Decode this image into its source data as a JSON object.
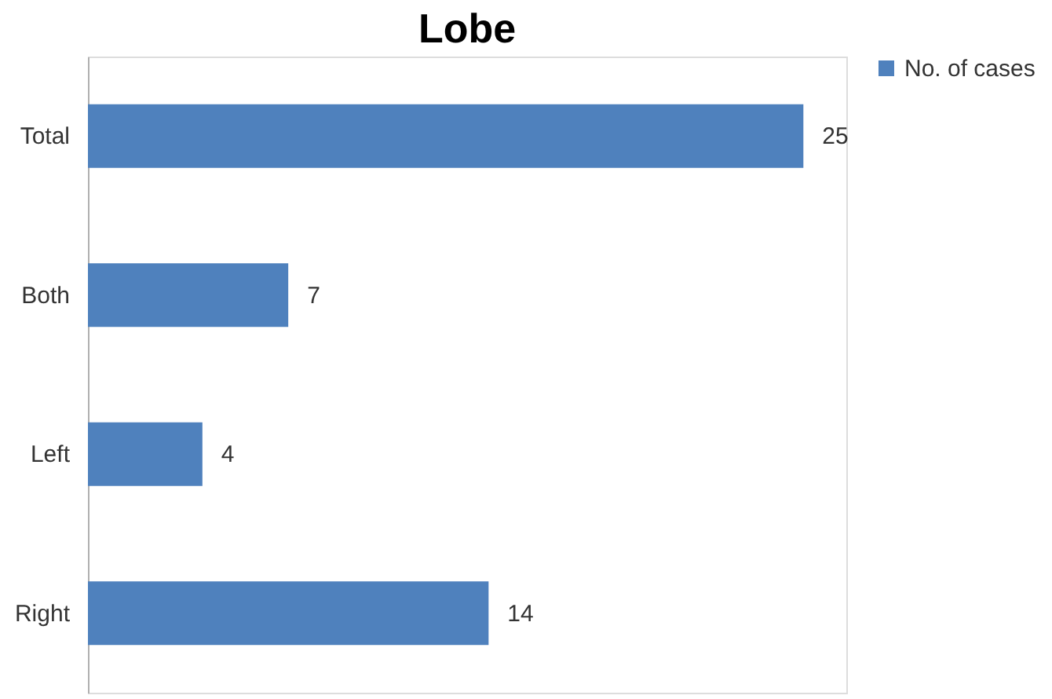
{
  "chart_data": {
    "type": "bar",
    "orientation": "horizontal",
    "title": "Lobe",
    "categories": [
      "Total",
      "Both",
      "Left",
      "Right"
    ],
    "series": [
      {
        "name": "No. of cases",
        "color": "#4f81bd",
        "values": [
          25,
          7,
          4,
          14
        ]
      }
    ],
    "xlim": [
      0,
      26.5
    ],
    "data_labels": true,
    "legend": "right",
    "tick_labels": "y",
    "grid": false
  }
}
